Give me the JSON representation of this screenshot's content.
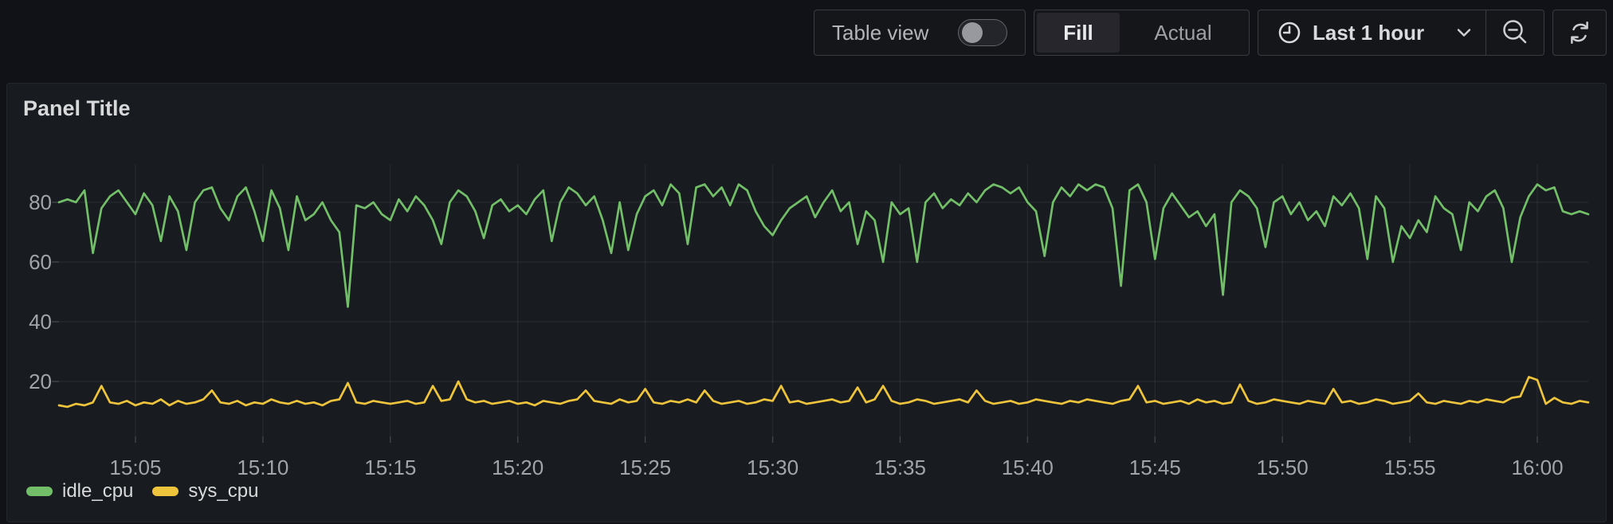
{
  "toolbar": {
    "table_view_label": "Table view",
    "table_view_toggle_state": "off",
    "fill_label": "Fill",
    "actual_label": "Actual",
    "selected_mode": "Fill",
    "time_range_label": "Last 1 hour"
  },
  "panel": {
    "title": "Panel Title"
  },
  "colors": {
    "page_bg": "#111217",
    "panel_bg": "#181b1f",
    "idle_cpu": "#73bf69",
    "sys_cpu": "#eec43d",
    "axis_text": "#a2a4ab",
    "grid": "rgba(204,204,220,0.07)",
    "tick": "rgba(204,204,220,0.22)"
  },
  "chart_data": {
    "type": "line",
    "title": "",
    "xlabel": "",
    "ylabel": "",
    "grid": true,
    "legend_position": "bottom-left",
    "x_start_time": "15:02",
    "x_span_minutes": 60,
    "points_step_seconds": 20,
    "x_first_tick_minute": 3,
    "x_tick_step_minutes": 5,
    "x_ticks": [
      "15:05",
      "15:10",
      "15:15",
      "15:20",
      "15:25",
      "15:30",
      "15:35",
      "15:40",
      "15:45",
      "15:50",
      "15:55",
      "16:00"
    ],
    "y_ticks": [
      20,
      40,
      60,
      80
    ],
    "ylim": [
      0,
      93
    ],
    "series": [
      {
        "name": "idle_cpu",
        "color": "#73bf69",
        "values": [
          80,
          81,
          80,
          84,
          63,
          78,
          82,
          84,
          80,
          76,
          83,
          79,
          67,
          82,
          77,
          64,
          80,
          84,
          85,
          78,
          74,
          82,
          85,
          77,
          67,
          84,
          78,
          64,
          82,
          74,
          76,
          80,
          74,
          70,
          45,
          79,
          78,
          80,
          76,
          74,
          81,
          77,
          82,
          79,
          74,
          66,
          80,
          84,
          82,
          77,
          68,
          79,
          81,
          77,
          79,
          76,
          81,
          84,
          67,
          80,
          85,
          83,
          79,
          82,
          74,
          63,
          80,
          64,
          76,
          82,
          84,
          79,
          86,
          83,
          66,
          85,
          86,
          82,
          85,
          79,
          86,
          84,
          77,
          72,
          69,
          74,
          78,
          80,
          82,
          75,
          80,
          84,
          77,
          80,
          66,
          77,
          74,
          60,
          80,
          76,
          78,
          60,
          80,
          83,
          78,
          81,
          79,
          83,
          80,
          84,
          86,
          85,
          83,
          85,
          80,
          77,
          62,
          80,
          85,
          82,
          86,
          84,
          86,
          85,
          78,
          52,
          84,
          86,
          80,
          61,
          78,
          83,
          79,
          75,
          77,
          72,
          76,
          49,
          80,
          84,
          82,
          78,
          65,
          80,
          82,
          76,
          80,
          74,
          77,
          72,
          82,
          79,
          83,
          78,
          61,
          82,
          78,
          60,
          72,
          68,
          74,
          70,
          82,
          78,
          76,
          64,
          80,
          77,
          82,
          84,
          78,
          60,
          75,
          82,
          86,
          84,
          85,
          77,
          76,
          77,
          76
        ]
      },
      {
        "name": "sys_cpu",
        "color": "#eec43d",
        "values": [
          12,
          11.5,
          12.5,
          12,
          13,
          18.5,
          13,
          12.5,
          13.5,
          12,
          13,
          12.5,
          14,
          12,
          13.5,
          12.5,
          13,
          14,
          17,
          13,
          12.5,
          13.5,
          12,
          13,
          12.5,
          14,
          13,
          12.5,
          13.5,
          12.5,
          13,
          12,
          13.5,
          14,
          19.5,
          13,
          12.5,
          13.5,
          13,
          12.5,
          13,
          13.5,
          12.5,
          13,
          18.5,
          13.5,
          14,
          20,
          14,
          13,
          13.5,
          12.5,
          13,
          13.5,
          12.5,
          13,
          12,
          13.5,
          13,
          12.5,
          13.5,
          14,
          17,
          13.5,
          13,
          12.5,
          14,
          13,
          13.5,
          17.5,
          13,
          12.5,
          13.5,
          13,
          14,
          13,
          17,
          13.5,
          12.5,
          13,
          13.5,
          12.5,
          13,
          14,
          13.5,
          18.5,
          13,
          13.5,
          12.5,
          13,
          13.5,
          14,
          13,
          13.5,
          18,
          13,
          14,
          18.5,
          13.5,
          12.5,
          13,
          14,
          13.5,
          12.5,
          13,
          13.5,
          14,
          13,
          17,
          13.5,
          12.5,
          13,
          13.5,
          12.5,
          13,
          14,
          13.5,
          13,
          12.5,
          13.5,
          13,
          14,
          13.5,
          13,
          12.5,
          13.5,
          14,
          18.5,
          13,
          13.5,
          12.5,
          13,
          13.5,
          12.5,
          14,
          13,
          13.5,
          12.5,
          13,
          19,
          13.5,
          12.5,
          13,
          14,
          13.5,
          13,
          12.5,
          13.5,
          13,
          12.5,
          17.5,
          13,
          13.5,
          12.5,
          13,
          14,
          13.5,
          12.5,
          13,
          13.5,
          16,
          13,
          12.5,
          13.5,
          13,
          12.5,
          13.5,
          13,
          14,
          13.5,
          13,
          14.5,
          15,
          21.5,
          20.5,
          12.5,
          14.5,
          13,
          12.5,
          13.5,
          13
        ]
      }
    ]
  }
}
